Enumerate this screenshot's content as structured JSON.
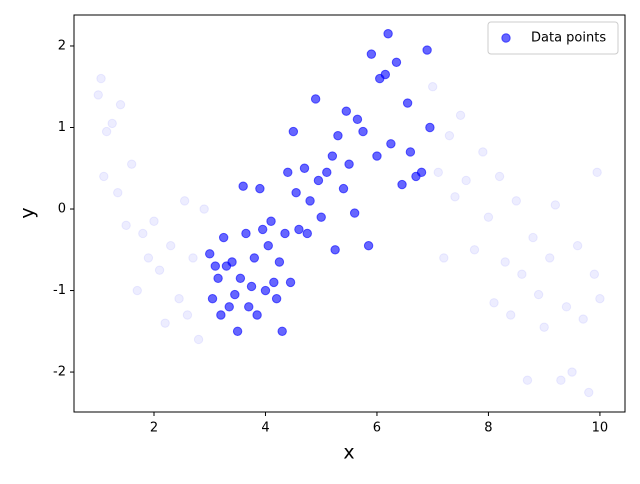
{
  "chart_data": {
    "type": "scatter",
    "xlabel": "x",
    "ylabel": "y",
    "xlim": [
      0.565,
      10.45
    ],
    "ylim": [
      -2.49,
      2.38
    ],
    "xticks": [
      2,
      4,
      6,
      8,
      10
    ],
    "yticks": [
      -2,
      -1,
      0,
      1,
      2
    ],
    "legend": "upper right",
    "series": [
      {
        "name": "Data points",
        "color": "#0000ff",
        "alpha": 0.6,
        "x": [
          3.0,
          3.05,
          3.1,
          3.15,
          3.2,
          3.25,
          3.3,
          3.35,
          3.4,
          3.45,
          3.5,
          3.55,
          3.6,
          3.65,
          3.7,
          3.75,
          3.8,
          3.85,
          3.9,
          3.95,
          4.0,
          4.05,
          4.1,
          4.15,
          4.2,
          4.25,
          4.3,
          4.35,
          4.4,
          4.45,
          4.5,
          4.55,
          4.6,
          4.7,
          4.75,
          4.8,
          4.9,
          4.95,
          5.0,
          5.1,
          5.2,
          5.25,
          5.3,
          5.4,
          5.45,
          5.5,
          5.6,
          5.65,
          5.75,
          5.85,
          5.9,
          6.0,
          6.05,
          6.15,
          6.2,
          6.25,
          6.35,
          6.45,
          6.55,
          6.6,
          6.7,
          6.8,
          6.9,
          6.95
        ],
        "values": [
          -0.55,
          -1.1,
          -0.7,
          -0.85,
          -1.3,
          -0.35,
          -0.7,
          -1.2,
          -0.65,
          -1.05,
          -1.5,
          -0.85,
          0.28,
          -0.3,
          -1.2,
          -0.95,
          -0.6,
          -1.3,
          0.25,
          -0.25,
          -1.0,
          -0.45,
          -0.15,
          -0.9,
          -1.1,
          -0.65,
          -1.5,
          -0.3,
          0.45,
          -0.9,
          0.95,
          0.2,
          -0.25,
          0.5,
          -0.3,
          0.1,
          1.35,
          0.35,
          -0.1,
          0.45,
          0.65,
          -0.5,
          0.9,
          0.25,
          1.2,
          0.55,
          -0.05,
          1.1,
          0.95,
          -0.45,
          1.9,
          0.65,
          1.6,
          1.65,
          2.15,
          0.8,
          1.8,
          0.3,
          1.3,
          0.7,
          0.4,
          0.45,
          1.95,
          1.0
        ]
      },
      {
        "color": "#0000ff",
        "alpha": 0.07,
        "x": [
          1.0,
          1.05,
          1.1,
          1.15,
          1.25,
          1.35,
          1.4,
          1.5,
          1.6,
          1.7,
          1.8,
          1.9,
          2.0,
          2.1,
          2.2,
          2.3,
          2.45,
          2.55,
          2.6,
          2.7,
          2.8,
          2.9,
          7.0,
          7.1,
          7.2,
          7.3,
          7.4,
          7.5,
          7.6,
          7.75,
          7.9,
          8.0,
          8.1,
          8.2,
          8.3,
          8.4,
          8.5,
          8.6,
          8.7,
          8.8,
          8.9,
          9.0,
          9.1,
          9.2,
          9.3,
          9.4,
          9.5,
          9.6,
          9.7,
          9.8,
          9.9,
          10.0,
          9.95
        ],
        "values": [
          1.4,
          1.6,
          0.4,
          0.95,
          1.05,
          0.2,
          1.28,
          -0.2,
          0.55,
          -1.0,
          -0.3,
          -0.6,
          -0.15,
          -0.75,
          -1.4,
          -0.45,
          -1.1,
          0.1,
          -1.3,
          -0.6,
          -1.6,
          0.0,
          1.5,
          0.45,
          -0.6,
          0.9,
          0.15,
          1.15,
          0.35,
          -0.5,
          0.7,
          -0.1,
          -1.15,
          0.4,
          -0.65,
          -1.3,
          0.1,
          -0.8,
          -2.1,
          -0.35,
          -1.05,
          -1.45,
          -0.6,
          0.05,
          -2.1,
          -1.2,
          -2.0,
          -0.45,
          -1.35,
          -2.25,
          -0.8,
          -1.1,
          0.45
        ]
      }
    ]
  }
}
